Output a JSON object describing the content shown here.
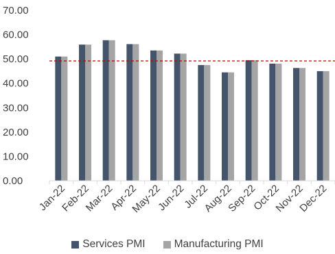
{
  "chart_data": {
    "type": "bar",
    "title": "",
    "xlabel": "",
    "ylabel": "",
    "categories": [
      "Jan-22",
      "Feb-22",
      "Mar-22",
      "Apr-22",
      "May-22",
      "Jun-22",
      "Jul-22",
      "Aug-22",
      "Sep-22",
      "Oct-22",
      "Nov-22",
      "Dec-22"
    ],
    "series": [
      {
        "name": "Services PMI",
        "color": "#44546A",
        "values": [
          51.0,
          55.9,
          57.7,
          56.1,
          53.5,
          52.2,
          47.5,
          44.5,
          49.5,
          48.1,
          46.3,
          45.0
        ]
      },
      {
        "name": "Manufacturing PMI",
        "color": "#A5A5A5",
        "values": [
          51.0,
          55.9,
          57.7,
          56.1,
          53.5,
          52.2,
          47.5,
          44.5,
          49.5,
          48.1,
          46.3,
          45.0
        ]
      }
    ],
    "ylim": [
      0,
      70
    ],
    "yticks": [
      "0.00",
      "10.00",
      "20.00",
      "30.00",
      "40.00",
      "50.00",
      "60.00",
      "70.00"
    ],
    "reference_line": {
      "value": 49.2,
      "color": "#C00000",
      "style": "dashed"
    },
    "grid": false,
    "legend_position": "bottom"
  }
}
